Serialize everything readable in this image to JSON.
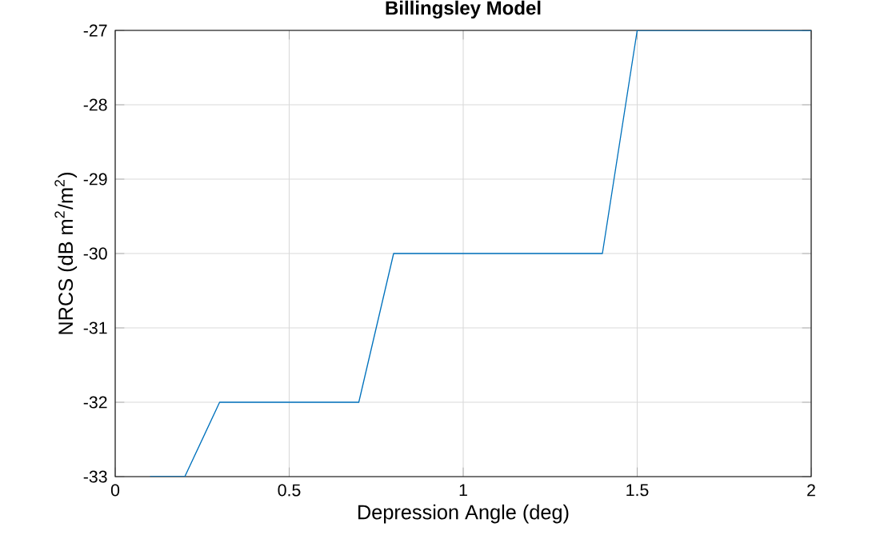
{
  "chart_data": {
    "type": "line",
    "title": "Billingsley Model",
    "xlabel": "Depression Angle (deg)",
    "ylabel": "NRCS (dB m$^{2}$/m$^{2}$)",
    "x": [
      0.1,
      0.2,
      0.3,
      0.7,
      0.8,
      1.4,
      1.5,
      2
    ],
    "series": [
      {
        "color": "#0072bd",
        "values": [
          -33,
          -33,
          -32,
          -32,
          -30,
          -30,
          -27,
          -27
        ]
      }
    ],
    "xlim": [
      0,
      2
    ],
    "ylim": [
      -33,
      -27
    ],
    "xticks": [
      0,
      0.5,
      1,
      1.5,
      2
    ],
    "yticks": [
      -33,
      -32,
      -31,
      -30,
      -29,
      -28,
      -27
    ],
    "grid": true
  }
}
